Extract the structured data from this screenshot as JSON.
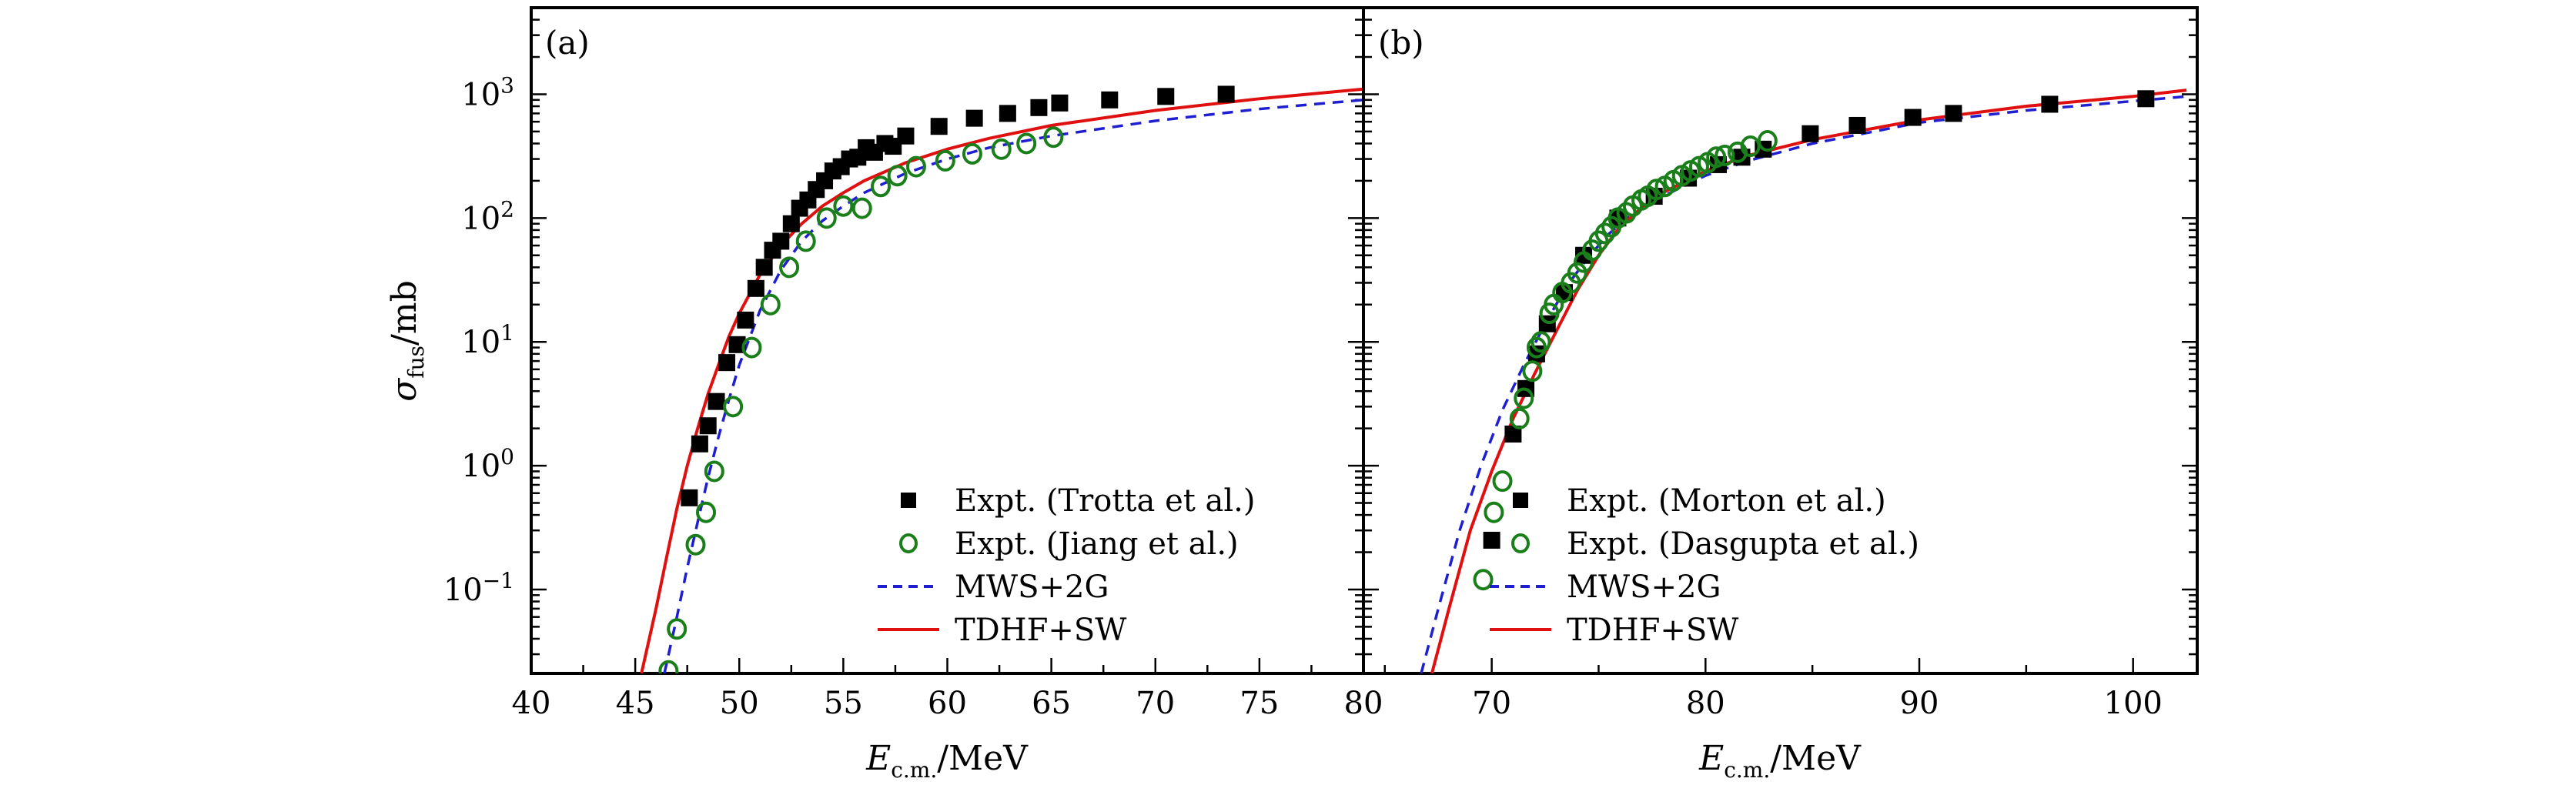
{
  "chart_data": [
    {
      "type": "scatter",
      "panel_label": "(a)",
      "xlabel": "E_c.m./MeV",
      "xlabel_main": "E",
      "xlabel_sub": "c.m.",
      "xlabel_unit": "/MeV",
      "ylabel": "σ_fus/mb",
      "ylabel_main": "σ",
      "ylabel_sub": "fus",
      "ylabel_unit": "/mb",
      "xlim": [
        40,
        80
      ],
      "ylim": [
        0.021,
        5000
      ],
      "yscale": "log",
      "xticks": [
        40,
        45,
        50,
        55,
        60,
        65,
        70,
        75,
        80
      ],
      "xtick_labels": [
        "40",
        "45",
        "50",
        "55",
        "60",
        "65",
        "70",
        "75",
        "80"
      ],
      "xminor_step": 2.5,
      "yticks": [
        0.1,
        1,
        10,
        100,
        1000
      ],
      "ytick_labels": [
        {
          "base": "10",
          "exp": "−1"
        },
        {
          "base": "10",
          "exp": "0"
        },
        {
          "base": "10",
          "exp": "1"
        },
        {
          "base": "10",
          "exp": "2"
        },
        {
          "base": "10",
          "exp": "3"
        }
      ],
      "legend_position": "bottom-right",
      "series": [
        {
          "name": "Expt. (Trotta et al.)",
          "kind": "points",
          "marker": "filled-square",
          "color": "#000000",
          "x": [
            47.6,
            48.1,
            48.5,
            48.9,
            49.4,
            49.9,
            50.3,
            50.8,
            51.2,
            51.6,
            52.0,
            52.5,
            52.9,
            53.3,
            53.7,
            54.1,
            54.5,
            54.9,
            55.3,
            55.7,
            56.1,
            56.5,
            57.0,
            57.4,
            58.0,
            59.6,
            61.3,
            62.9,
            64.4,
            65.4,
            67.8,
            70.5,
            73.4
          ],
          "y": [
            0.55,
            1.5,
            2.1,
            3.3,
            6.8,
            9.5,
            15,
            27,
            40,
            55,
            65,
            90,
            120,
            140,
            170,
            200,
            240,
            260,
            300,
            310,
            370,
            340,
            400,
            380,
            460,
            550,
            640,
            700,
            780,
            850,
            900,
            960,
            1000
          ]
        },
        {
          "name": "Expt. (Jiang et al.)",
          "kind": "points",
          "marker": "open-circle",
          "color": "#1a7f1a",
          "x": [
            46.6,
            47.0,
            47.9,
            48.4,
            48.8,
            49.7,
            50.6,
            51.5,
            52.4,
            53.2,
            54.2,
            55.0,
            55.9,
            56.8,
            57.6,
            58.5,
            59.9,
            61.2,
            62.6,
            63.8,
            65.1
          ],
          "y": [
            0.022,
            0.048,
            0.23,
            0.42,
            0.9,
            3.0,
            9,
            20,
            40,
            65,
            100,
            125,
            120,
            180,
            220,
            260,
            290,
            330,
            360,
            400,
            450
          ]
        },
        {
          "name": "MWS+2G",
          "kind": "line",
          "style": "dashed",
          "color": "#1f1fd0",
          "x": [
            46.4,
            47.0,
            47.5,
            48.0,
            48.5,
            49.0,
            49.5,
            50.0,
            51.0,
            52.0,
            53.0,
            54.0,
            55.0,
            56.0,
            58.0,
            60.0,
            62.0,
            65.0,
            70.0,
            75.0,
            80.0
          ],
          "y": [
            0.021,
            0.06,
            0.15,
            0.35,
            0.8,
            1.7,
            3.4,
            6.5,
            18,
            38,
            65,
            95,
            125,
            160,
            230,
            300,
            370,
            460,
            610,
            760,
            900
          ]
        },
        {
          "name": "TDHF+SW",
          "kind": "line",
          "style": "solid",
          "color": "#e01010",
          "x": [
            45.3,
            46.0,
            46.5,
            47.0,
            47.5,
            48.0,
            48.5,
            49.0,
            49.5,
            50.0,
            51.0,
            52.0,
            53.0,
            54.0,
            55.0,
            56.0,
            58.0,
            60.0,
            62.0,
            65.0,
            70.0,
            75.0,
            80.0
          ],
          "y": [
            0.021,
            0.07,
            0.18,
            0.45,
            1.0,
            2.0,
            3.8,
            6.5,
            11,
            17,
            35,
            60,
            90,
            125,
            160,
            200,
            280,
            360,
            440,
            560,
            740,
            920,
            1100
          ]
        }
      ]
    },
    {
      "type": "scatter",
      "panel_label": "(b)",
      "xlabel": "E_c.m./MeV",
      "xlabel_main": "E",
      "xlabel_sub": "c.m.",
      "xlabel_unit": "/MeV",
      "xlim": [
        64,
        103
      ],
      "ylim": [
        0.021,
        5000
      ],
      "yscale": "log",
      "xticks": [
        70,
        80,
        90,
        100
      ],
      "xtick_labels": [
        "70",
        "80",
        "90",
        "100"
      ],
      "xminor_step": 5,
      "legend_position": "bottom-right",
      "series": [
        {
          "name": "Expt. (Morton et al.)",
          "kind": "points",
          "marker": "filled-square",
          "color": "#000000",
          "x": [
            70.0,
            71.0,
            71.6,
            72.1,
            72.6,
            73.4,
            74.3,
            75.9,
            77.6,
            79.2,
            80.6,
            81.7,
            82.7,
            84.9,
            87.1,
            89.7,
            91.6,
            96.1,
            100.6
          ],
          "y": [
            0.25,
            1.8,
            4.2,
            8.0,
            14,
            25,
            50,
            100,
            150,
            210,
            270,
            310,
            360,
            480,
            560,
            650,
            700,
            830,
            920
          ]
        },
        {
          "name": "Expt. (Dasgupta et al.)",
          "kind": "points",
          "marker": "open-circle",
          "color": "#1a7f1a",
          "x": [
            69.6,
            70.1,
            70.5,
            71.3,
            71.5,
            71.9,
            72.1,
            72.3,
            72.7,
            72.9,
            73.3,
            73.7,
            74.0,
            74.3,
            74.7,
            75.0,
            75.3,
            75.6,
            75.9,
            76.3,
            76.6,
            77.0,
            77.3,
            77.7,
            78.1,
            78.5,
            78.9,
            79.3,
            79.7,
            80.1,
            80.5,
            80.9,
            81.5,
            82.1,
            82.9
          ],
          "y": [
            0.12,
            0.42,
            0.75,
            2.4,
            3.5,
            5.8,
            9,
            10,
            17,
            20,
            25,
            30,
            36,
            44,
            55,
            65,
            75,
            85,
            100,
            110,
            125,
            140,
            150,
            170,
            180,
            200,
            220,
            240,
            260,
            280,
            310,
            320,
            340,
            380,
            420
          ]
        },
        {
          "name": "MWS+2G",
          "kind": "line",
          "style": "dashed",
          "color": "#1f1fd0",
          "x": [
            66.7,
            67.5,
            68.5,
            69.5,
            70.5,
            71.5,
            72.5,
            73.5,
            74.5,
            75.5,
            76.5,
            78.0,
            80.0,
            82.0,
            85.0,
            90.0,
            95.0,
            100.0,
            102.5
          ],
          "y": [
            0.021,
            0.07,
            0.3,
            1.0,
            2.8,
            6.5,
            14,
            28,
            48,
            75,
            105,
            150,
            220,
            290,
            400,
            590,
            740,
            880,
            960
          ]
        },
        {
          "name": "TDHF+SW",
          "kind": "line",
          "style": "solid",
          "color": "#e01010",
          "x": [
            67.2,
            68.0,
            69.0,
            70.0,
            71.0,
            72.0,
            73.0,
            74.0,
            75.0,
            76.0,
            77.0,
            78.0,
            80.0,
            82.0,
            85.0,
            90.0,
            95.0,
            100.0,
            102.5
          ],
          "y": [
            0.021,
            0.07,
            0.3,
            0.9,
            2.4,
            5.5,
            12,
            26,
            50,
            85,
            120,
            160,
            240,
            320,
            430,
            620,
            800,
            960,
            1080
          ]
        }
      ]
    }
  ]
}
